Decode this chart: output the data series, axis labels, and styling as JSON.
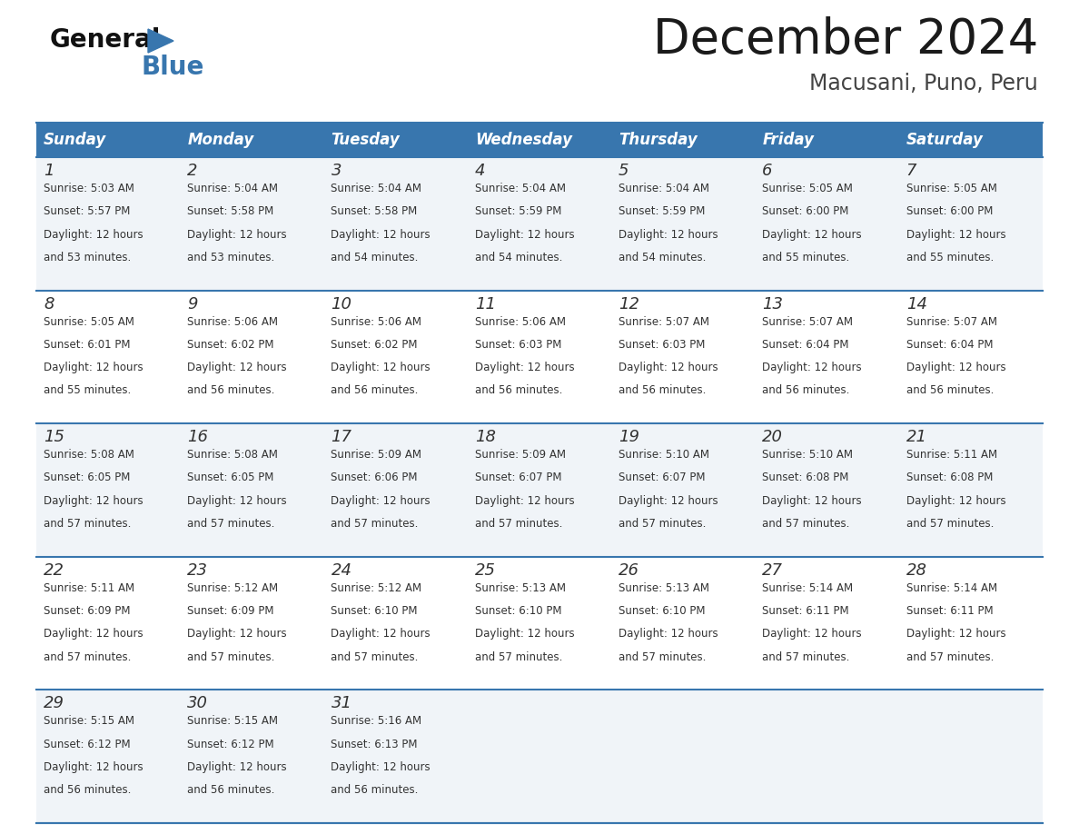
{
  "title": "December 2024",
  "subtitle": "Macusani, Puno, Peru",
  "header_color": "#3876ae",
  "header_text_color": "#ffffff",
  "row_colors": [
    "#f0f4f8",
    "#ffffff",
    "#f0f4f8",
    "#ffffff",
    "#f0f4f8"
  ],
  "border_color": "#3876ae",
  "text_color": "#333333",
  "days_of_week": [
    "Sunday",
    "Monday",
    "Tuesday",
    "Wednesday",
    "Thursday",
    "Friday",
    "Saturday"
  ],
  "calendar_data": [
    {
      "day": 1,
      "sunrise": "5:03 AM",
      "sunset": "5:57 PM",
      "daylight_hours": 12,
      "daylight_minutes": 53
    },
    {
      "day": 2,
      "sunrise": "5:04 AM",
      "sunset": "5:58 PM",
      "daylight_hours": 12,
      "daylight_minutes": 53
    },
    {
      "day": 3,
      "sunrise": "5:04 AM",
      "sunset": "5:58 PM",
      "daylight_hours": 12,
      "daylight_minutes": 54
    },
    {
      "day": 4,
      "sunrise": "5:04 AM",
      "sunset": "5:59 PM",
      "daylight_hours": 12,
      "daylight_minutes": 54
    },
    {
      "day": 5,
      "sunrise": "5:04 AM",
      "sunset": "5:59 PM",
      "daylight_hours": 12,
      "daylight_minutes": 54
    },
    {
      "day": 6,
      "sunrise": "5:05 AM",
      "sunset": "6:00 PM",
      "daylight_hours": 12,
      "daylight_minutes": 55
    },
    {
      "day": 7,
      "sunrise": "5:05 AM",
      "sunset": "6:00 PM",
      "daylight_hours": 12,
      "daylight_minutes": 55
    },
    {
      "day": 8,
      "sunrise": "5:05 AM",
      "sunset": "6:01 PM",
      "daylight_hours": 12,
      "daylight_minutes": 55
    },
    {
      "day": 9,
      "sunrise": "5:06 AM",
      "sunset": "6:02 PM",
      "daylight_hours": 12,
      "daylight_minutes": 56
    },
    {
      "day": 10,
      "sunrise": "5:06 AM",
      "sunset": "6:02 PM",
      "daylight_hours": 12,
      "daylight_minutes": 56
    },
    {
      "day": 11,
      "sunrise": "5:06 AM",
      "sunset": "6:03 PM",
      "daylight_hours": 12,
      "daylight_minutes": 56
    },
    {
      "day": 12,
      "sunrise": "5:07 AM",
      "sunset": "6:03 PM",
      "daylight_hours": 12,
      "daylight_minutes": 56
    },
    {
      "day": 13,
      "sunrise": "5:07 AM",
      "sunset": "6:04 PM",
      "daylight_hours": 12,
      "daylight_minutes": 56
    },
    {
      "day": 14,
      "sunrise": "5:07 AM",
      "sunset": "6:04 PM",
      "daylight_hours": 12,
      "daylight_minutes": 56
    },
    {
      "day": 15,
      "sunrise": "5:08 AM",
      "sunset": "6:05 PM",
      "daylight_hours": 12,
      "daylight_minutes": 57
    },
    {
      "day": 16,
      "sunrise": "5:08 AM",
      "sunset": "6:05 PM",
      "daylight_hours": 12,
      "daylight_minutes": 57
    },
    {
      "day": 17,
      "sunrise": "5:09 AM",
      "sunset": "6:06 PM",
      "daylight_hours": 12,
      "daylight_minutes": 57
    },
    {
      "day": 18,
      "sunrise": "5:09 AM",
      "sunset": "6:07 PM",
      "daylight_hours": 12,
      "daylight_minutes": 57
    },
    {
      "day": 19,
      "sunrise": "5:10 AM",
      "sunset": "6:07 PM",
      "daylight_hours": 12,
      "daylight_minutes": 57
    },
    {
      "day": 20,
      "sunrise": "5:10 AM",
      "sunset": "6:08 PM",
      "daylight_hours": 12,
      "daylight_minutes": 57
    },
    {
      "day": 21,
      "sunrise": "5:11 AM",
      "sunset": "6:08 PM",
      "daylight_hours": 12,
      "daylight_minutes": 57
    },
    {
      "day": 22,
      "sunrise": "5:11 AM",
      "sunset": "6:09 PM",
      "daylight_hours": 12,
      "daylight_minutes": 57
    },
    {
      "day": 23,
      "sunrise": "5:12 AM",
      "sunset": "6:09 PM",
      "daylight_hours": 12,
      "daylight_minutes": 57
    },
    {
      "day": 24,
      "sunrise": "5:12 AM",
      "sunset": "6:10 PM",
      "daylight_hours": 12,
      "daylight_minutes": 57
    },
    {
      "day": 25,
      "sunrise": "5:13 AM",
      "sunset": "6:10 PM",
      "daylight_hours": 12,
      "daylight_minutes": 57
    },
    {
      "day": 26,
      "sunrise": "5:13 AM",
      "sunset": "6:10 PM",
      "daylight_hours": 12,
      "daylight_minutes": 57
    },
    {
      "day": 27,
      "sunrise": "5:14 AM",
      "sunset": "6:11 PM",
      "daylight_hours": 12,
      "daylight_minutes": 57
    },
    {
      "day": 28,
      "sunrise": "5:14 AM",
      "sunset": "6:11 PM",
      "daylight_hours": 12,
      "daylight_minutes": 57
    },
    {
      "day": 29,
      "sunrise": "5:15 AM",
      "sunset": "6:12 PM",
      "daylight_hours": 12,
      "daylight_minutes": 56
    },
    {
      "day": 30,
      "sunrise": "5:15 AM",
      "sunset": "6:12 PM",
      "daylight_hours": 12,
      "daylight_minutes": 56
    },
    {
      "day": 31,
      "sunrise": "5:16 AM",
      "sunset": "6:13 PM",
      "daylight_hours": 12,
      "daylight_minutes": 56
    }
  ],
  "logo_general_color": "#111111",
  "logo_blue_color": "#3876ae",
  "logo_triangle_color": "#3876ae",
  "fig_width": 11.88,
  "fig_height": 9.18,
  "dpi": 100
}
